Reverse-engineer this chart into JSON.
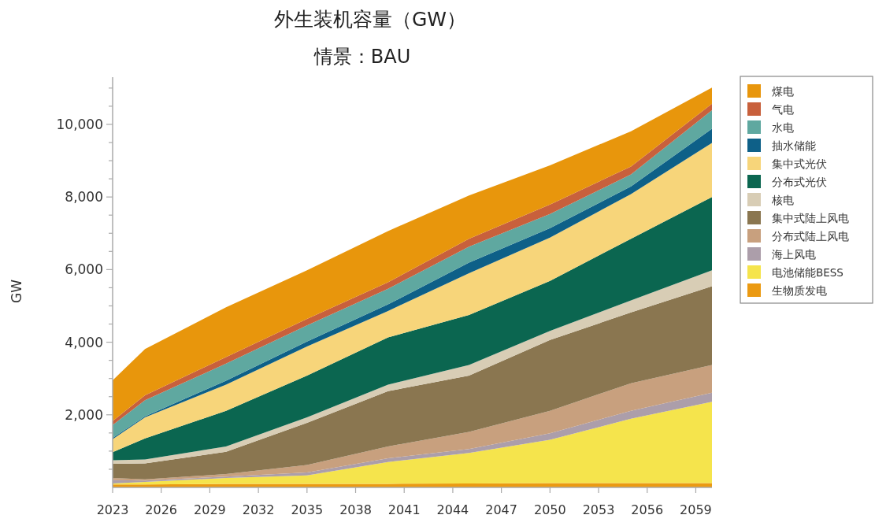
{
  "chart_data": {
    "type": "area",
    "stacked": true,
    "title": "外生装机容量（GW）",
    "subtitle": "情景：BAU",
    "ylabel": "GW",
    "legend": "right",
    "grid": false,
    "x": [
      2023,
      2025,
      2030,
      2035,
      2040,
      2045,
      2050,
      2055,
      2060
    ],
    "xlim": [
      2023,
      2060
    ],
    "xticks": [
      2023,
      2026,
      2029,
      2032,
      2035,
      2038,
      2041,
      2044,
      2047,
      2050,
      2053,
      2056,
      2059
    ],
    "ylim": [
      0,
      11300
    ],
    "yticks": [
      {
        "value": 500,
        "label": null
      },
      {
        "value": 1000,
        "label": null
      },
      {
        "value": 1500,
        "label": null
      },
      {
        "value": 2000,
        "label": "2,000"
      },
      {
        "value": 2500,
        "label": null
      },
      {
        "value": 3000,
        "label": null
      },
      {
        "value": 3500,
        "label": null
      },
      {
        "value": 4000,
        "label": "4,000"
      },
      {
        "value": 4500,
        "label": null
      },
      {
        "value": 5000,
        "label": null
      },
      {
        "value": 5500,
        "label": null
      },
      {
        "value": 6000,
        "label": "6,000"
      },
      {
        "value": 6500,
        "label": null
      },
      {
        "value": 7000,
        "label": null
      },
      {
        "value": 7500,
        "label": null
      },
      {
        "value": 8000,
        "label": "8,000"
      },
      {
        "value": 8500,
        "label": null
      },
      {
        "value": 9000,
        "label": null
      },
      {
        "value": 9500,
        "label": null
      },
      {
        "value": 10000,
        "label": "10,000"
      },
      {
        "value": 10500,
        "label": null
      },
      {
        "value": 11000,
        "label": null
      }
    ],
    "series": [
      {
        "name": "生物质发电",
        "color": "#eb9a12",
        "values": [
          80,
          80,
          100,
          100,
          100,
          110,
          120,
          120,
          120
        ]
      },
      {
        "name": "电池储能BESS",
        "color": "#f5e44c",
        "values": [
          30,
          70,
          160,
          230,
          600,
          840,
          1190,
          1770,
          2240
        ]
      },
      {
        "name": "海上风电",
        "color": "#ac9eaa",
        "values": [
          90,
          40,
          40,
          80,
          100,
          110,
          180,
          220,
          250
        ]
      },
      {
        "name": "分布式陆上风电",
        "color": "#c8a07e",
        "values": [
          60,
          30,
          70,
          210,
          330,
          470,
          620,
          760,
          760
        ]
      },
      {
        "name": "集中式陆上风电",
        "color": "#8a7650",
        "values": [
          390,
          440,
          610,
          1160,
          1520,
          1550,
          1950,
          1950,
          2170
        ]
      },
      {
        "name": "核电",
        "color": "#d8cdb5",
        "values": [
          100,
          110,
          150,
          150,
          180,
          290,
          250,
          330,
          440
        ]
      },
      {
        "name": "分布式光伏",
        "color": "#0b6650",
        "values": [
          220,
          580,
          980,
          1150,
          1300,
          1380,
          1380,
          1700,
          2020
        ]
      },
      {
        "name": "集中式光伏",
        "color": "#f7d57a",
        "values": [
          360,
          580,
          720,
          800,
          730,
          1150,
          1190,
          1230,
          1490
        ]
      },
      {
        "name": "抽水储能",
        "color": "#0e6088",
        "values": [
          30,
          30,
          110,
          140,
          180,
          290,
          260,
          210,
          390
        ]
      },
      {
        "name": "水电",
        "color": "#5fa8a0",
        "values": [
          360,
          440,
          470,
          440,
          430,
          440,
          390,
          330,
          510
        ]
      },
      {
        "name": "气电",
        "color": "#c8603c",
        "values": [
          110,
          140,
          180,
          180,
          180,
          220,
          260,
          220,
          180
        ]
      },
      {
        "name": "煤电",
        "color": "#e8960c",
        "values": [
          1120,
          1270,
          1370,
          1340,
          1410,
          1190,
          1080,
          970,
          440
        ]
      }
    ]
  }
}
